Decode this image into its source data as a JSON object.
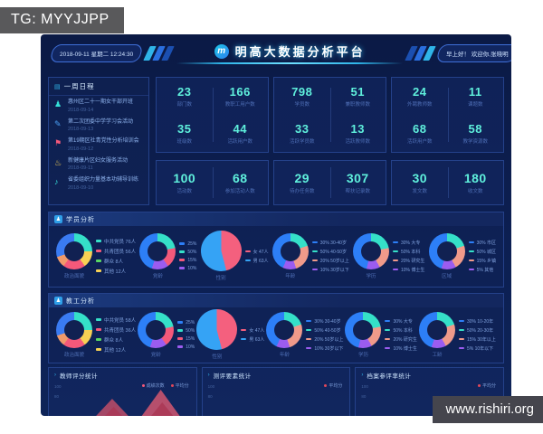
{
  "overlay": {
    "tg_label": "TG: MYYJJPP",
    "watermark": "www.rishiri.org"
  },
  "header": {
    "datetime": "2018-09-11  星期二  12:24:30",
    "title": "明高大数据分析平台",
    "logo_glyph": "m",
    "greeting": "早上好！ 欢迎你,张晓明"
  },
  "schedule": {
    "title": "一周日程",
    "icon_glyph": "▤",
    "items": [
      {
        "icon": "person-icon",
        "glyph": "♟",
        "color": "#35e0d8",
        "text": "惠州区二十一期女干部开班",
        "date": "2018-09-14"
      },
      {
        "icon": "camera-icon",
        "glyph": "✎",
        "color": "#4aa0f5",
        "text": "第二次团委中学学习会活动",
        "date": "2018-09-13"
      },
      {
        "icon": "award-icon",
        "glyph": "⚑",
        "color": "#f4597a",
        "text": "第19期区社青党性分析培训会",
        "date": "2018-09-12"
      },
      {
        "icon": "runner-icon",
        "glyph": "♨",
        "color": "#f7d154",
        "text": "新健康片区妇女服务活动",
        "date": "2018-09-11"
      },
      {
        "icon": "mic-icon",
        "glyph": "♪",
        "color": "#35e0d8",
        "text": "省委组织力量基本功辅导训练",
        "date": "2018-09-10"
      }
    ]
  },
  "stats_row1": [
    {
      "cells": [
        {
          "value": "23",
          "label": "部门数"
        },
        {
          "value": "166",
          "label": "教职工用户数"
        },
        {
          "value": "35",
          "label": "班级数"
        },
        {
          "value": "44",
          "label": "活跃用户数"
        }
      ]
    },
    {
      "cells": [
        {
          "value": "798",
          "label": "学员数"
        },
        {
          "value": "51",
          "label": "兼职教师数"
        },
        {
          "value": "33",
          "label": "活跃学员数"
        },
        {
          "value": "13",
          "label": "活跃教师数"
        }
      ]
    },
    {
      "cells": [
        {
          "value": "24",
          "label": "外聘教师数"
        },
        {
          "value": "11",
          "label": "课题数"
        },
        {
          "value": "68",
          "label": "活跃用户数"
        },
        {
          "value": "58",
          "label": "教学资源数"
        }
      ]
    }
  ],
  "stats_row2": [
    {
      "cells": [
        {
          "value": "100",
          "label": "活动数"
        },
        {
          "value": "68",
          "label": "参加活动人数"
        }
      ]
    },
    {
      "cells": [
        {
          "value": "29",
          "label": "待办任务数"
        },
        {
          "value": "307",
          "label": "帮扶记录数"
        }
      ]
    },
    {
      "cells": [
        {
          "value": "30",
          "label": "发文数"
        },
        {
          "value": "180",
          "label": "收文数"
        }
      ]
    }
  ],
  "student_section": {
    "title": "学员分析",
    "icon_glyph": "♟",
    "charts": [
      {
        "caption": "政治面貌",
        "type": "donut",
        "wide": true,
        "segments": [
          [
            "#35e0c8",
            25
          ],
          [
            "#f7d154",
            15
          ],
          [
            "#f4597a",
            20
          ],
          [
            "#f09a6a",
            10
          ],
          [
            "#3a7bf2",
            30
          ]
        ],
        "legend": [
          {
            "color": "#35e0c8",
            "text": "中共党员 76人"
          },
          {
            "color": "#f4597a",
            "text": "共青团员 56人"
          },
          {
            "color": "#58d764",
            "text": "群众 8人"
          },
          {
            "color": "#f7d154",
            "text": "其他 12人"
          }
        ]
      },
      {
        "caption": "党龄",
        "type": "donut",
        "wide": false,
        "segments": [
          [
            "#35e0c8",
            22
          ],
          [
            "#f4597a",
            18
          ],
          [
            "#9b5cf0",
            15
          ],
          [
            "#2d7ff7",
            45
          ]
        ],
        "legend": [
          {
            "color": "#2d7ff7",
            "text": "25%"
          },
          {
            "color": "#35e0c8",
            "text": "50%"
          },
          {
            "color": "#f4597a",
            "text": "15%"
          },
          {
            "color": "#9b5cf0",
            "text": "10%"
          }
        ]
      },
      {
        "caption": "性别",
        "type": "pie",
        "wide": false,
        "segments": [
          [
            "#f4607e",
            46
          ],
          [
            "#35a3f5",
            54
          ]
        ],
        "legend": [
          {
            "color": "#f4607e",
            "text": "女 47人"
          },
          {
            "color": "#35a3f5",
            "text": "男 63人"
          }
        ]
      },
      {
        "caption": "年龄",
        "type": "donut",
        "wide": false,
        "segments": [
          [
            "#35e0c8",
            20
          ],
          [
            "#f09a8a",
            25
          ],
          [
            "#9b5cf0",
            12
          ],
          [
            "#2d7ff7",
            43
          ]
        ],
        "legend": [
          {
            "color": "#2d7ff7",
            "text": "30% 30-40岁"
          },
          {
            "color": "#35e0c8",
            "text": "50% 40-50岁"
          },
          {
            "color": "#f09a8a",
            "text": "20% 50岁以上"
          },
          {
            "color": "#9b5cf0",
            "text": "10% 30岁以下"
          }
        ]
      },
      {
        "caption": "学历",
        "type": "donut",
        "wide": false,
        "segments": [
          [
            "#35e0c8",
            22
          ],
          [
            "#f09a8a",
            20
          ],
          [
            "#9b5cf0",
            12
          ],
          [
            "#2d7ff7",
            46
          ]
        ],
        "legend": [
          {
            "color": "#2d7ff7",
            "text": "30% 大专"
          },
          {
            "color": "#35e0c8",
            "text": "50% 本科"
          },
          {
            "color": "#f09a8a",
            "text": "20% 研究生"
          },
          {
            "color": "#9b5cf0",
            "text": "10% 博士生"
          }
        ]
      },
      {
        "caption": "区域",
        "type": "donut",
        "wide": false,
        "segments": [
          [
            "#35e0c8",
            20
          ],
          [
            "#f09a8a",
            22
          ],
          [
            "#9b5cf0",
            13
          ],
          [
            "#2d7ff7",
            45
          ]
        ],
        "legend": [
          {
            "color": "#2d7ff7",
            "text": "30% 市区"
          },
          {
            "color": "#35e0c8",
            "text": "50% 城区"
          },
          {
            "color": "#f09a8a",
            "text": "15% 乡镇"
          },
          {
            "color": "#9b5cf0",
            "text": "5% 其他"
          }
        ]
      }
    ]
  },
  "staff_section": {
    "title": "教工分析",
    "icon_glyph": "♟",
    "charts": [
      {
        "caption": "政治面貌",
        "type": "donut",
        "wide": true,
        "segments": [
          [
            "#35e0c8",
            25
          ],
          [
            "#f7d154",
            15
          ],
          [
            "#f4597a",
            20
          ],
          [
            "#f09a6a",
            10
          ],
          [
            "#3a7bf2",
            30
          ]
        ],
        "legend": [
          {
            "color": "#35e0c8",
            "text": "中共党员 58人"
          },
          {
            "color": "#f4597a",
            "text": "共青团员 36人"
          },
          {
            "color": "#58d764",
            "text": "群众 8人"
          },
          {
            "color": "#f7d154",
            "text": "其他 12人"
          }
        ]
      },
      {
        "caption": "党龄",
        "type": "donut",
        "wide": false,
        "segments": [
          [
            "#35e0c8",
            22
          ],
          [
            "#f4597a",
            18
          ],
          [
            "#9b5cf0",
            15
          ],
          [
            "#2d7ff7",
            45
          ]
        ],
        "legend": [
          {
            "color": "#2d7ff7",
            "text": "25%"
          },
          {
            "color": "#35e0c8",
            "text": "50%"
          },
          {
            "color": "#f4597a",
            "text": "15%"
          },
          {
            "color": "#9b5cf0",
            "text": "10%"
          }
        ]
      },
      {
        "caption": "性别",
        "type": "pie",
        "wide": false,
        "segments": [
          [
            "#f4607e",
            46
          ],
          [
            "#35a3f5",
            54
          ]
        ],
        "legend": [
          {
            "color": "#f4607e",
            "text": "女 47人"
          },
          {
            "color": "#35a3f5",
            "text": "男 63人"
          }
        ]
      },
      {
        "caption": "年龄",
        "type": "donut",
        "wide": false,
        "segments": [
          [
            "#35e0c8",
            20
          ],
          [
            "#f09a8a",
            25
          ],
          [
            "#9b5cf0",
            12
          ],
          [
            "#2d7ff7",
            43
          ]
        ],
        "legend": [
          {
            "color": "#2d7ff7",
            "text": "30% 30-40岁"
          },
          {
            "color": "#35e0c8",
            "text": "50% 40-50岁"
          },
          {
            "color": "#f09a8a",
            "text": "20% 50岁以上"
          },
          {
            "color": "#9b5cf0",
            "text": "10% 30岁以下"
          }
        ]
      },
      {
        "caption": "学历",
        "type": "donut",
        "wide": false,
        "segments": [
          [
            "#35e0c8",
            22
          ],
          [
            "#f09a8a",
            20
          ],
          [
            "#9b5cf0",
            12
          ],
          [
            "#2d7ff7",
            46
          ]
        ],
        "legend": [
          {
            "color": "#2d7ff7",
            "text": "30% 大专"
          },
          {
            "color": "#35e0c8",
            "text": "50% 本科"
          },
          {
            "color": "#f09a8a",
            "text": "20% 研究生"
          },
          {
            "color": "#9b5cf0",
            "text": "10% 博士生"
          }
        ]
      },
      {
        "caption": "工龄",
        "type": "donut",
        "wide": false,
        "segments": [
          [
            "#35e0c8",
            20
          ],
          [
            "#f09a8a",
            22
          ],
          [
            "#9b5cf0",
            13
          ],
          [
            "#2d7ff7",
            45
          ]
        ],
        "legend": [
          {
            "color": "#2d7ff7",
            "text": "30% 10-20年"
          },
          {
            "color": "#35e0c8",
            "text": "50% 20-30年"
          },
          {
            "color": "#f09a8a",
            "text": "15% 30年以上"
          },
          {
            "color": "#9b5cf0",
            "text": "5% 10年以下"
          }
        ]
      }
    ]
  },
  "bottom_charts": [
    {
      "title": "教师评分统计",
      "yticks": [
        "100",
        "80"
      ],
      "area": true,
      "legend": [
        {
          "label": "成绩次数",
          "color": "#f4597a"
        },
        {
          "label": "平均分",
          "color": "#e0485a"
        }
      ]
    },
    {
      "title": "测评要素统计",
      "yticks": [
        "100",
        "80"
      ],
      "area": false,
      "legend": [
        {
          "label": "平均分",
          "color": "#e0485a"
        }
      ]
    },
    {
      "title": "档案参评率统计",
      "yticks": [
        "100",
        "80"
      ],
      "area": false,
      "legend": [
        {
          "label": "平均分",
          "color": "#e0485a"
        }
      ]
    }
  ],
  "colors": {
    "accent_cyan": "#2fb4e8",
    "value_teal": "#5ff0dc",
    "panel_border": "#24418a",
    "dashboard_bg": "#0c1f52"
  }
}
